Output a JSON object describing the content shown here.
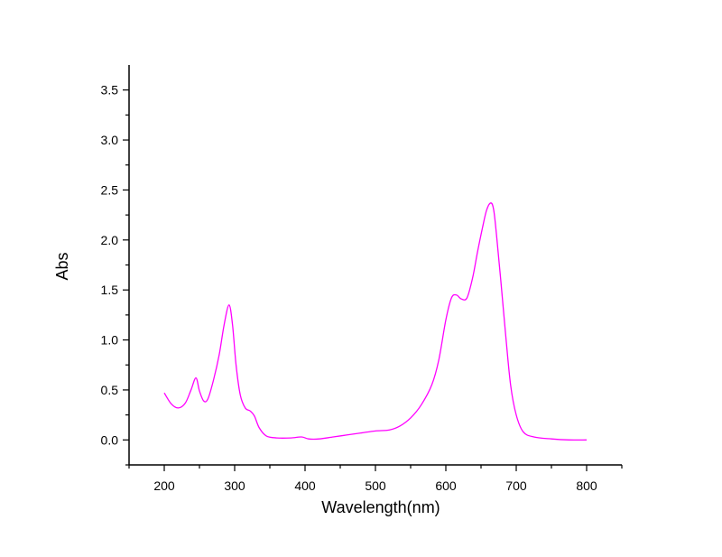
{
  "chart_data": {
    "type": "line",
    "xlabel": "Wavelength(nm)",
    "ylabel": "Abs",
    "xlim": [
      150,
      850
    ],
    "ylim": [
      -0.25,
      3.75
    ],
    "x_ticks": [
      200,
      300,
      400,
      500,
      600,
      700,
      800
    ],
    "x_tick_labels": [
      "200",
      "300",
      "400",
      "500",
      "600",
      "700",
      "800"
    ],
    "y_ticks": [
      0.0,
      0.5,
      1.0,
      1.5,
      2.0,
      2.5,
      3.0,
      3.5
    ],
    "y_tick_labels": [
      "0.0",
      "0.5",
      "1.0",
      "1.5",
      "2.0",
      "2.5",
      "3.0",
      "3.5"
    ],
    "grid": false,
    "legend": "none",
    "series": [
      {
        "color": "#ff00ff",
        "x": [
          200,
          210,
          220,
          230,
          238,
          245,
          250,
          256,
          262,
          270,
          278,
          285,
          292,
          297,
          302,
          308,
          315,
          322,
          328,
          335,
          345,
          360,
          380,
          395,
          405,
          420,
          440,
          460,
          480,
          500,
          520,
          535,
          550,
          565,
          580,
          590,
          600,
          608,
          615,
          622,
          630,
          638,
          645,
          652,
          658,
          664,
          668,
          672,
          678,
          685,
          692,
          700,
          710,
          725,
          750,
          775,
          800
        ],
        "y": [
          0.47,
          0.36,
          0.32,
          0.37,
          0.5,
          0.62,
          0.49,
          0.39,
          0.41,
          0.6,
          0.85,
          1.15,
          1.35,
          1.15,
          0.75,
          0.45,
          0.32,
          0.29,
          0.24,
          0.12,
          0.04,
          0.02,
          0.02,
          0.03,
          0.01,
          0.01,
          0.03,
          0.05,
          0.07,
          0.09,
          0.1,
          0.14,
          0.22,
          0.35,
          0.55,
          0.8,
          1.2,
          1.42,
          1.45,
          1.41,
          1.42,
          1.62,
          1.88,
          2.12,
          2.3,
          2.37,
          2.3,
          2.05,
          1.6,
          1.05,
          0.55,
          0.25,
          0.08,
          0.03,
          0.01,
          0.0,
          0.0
        ]
      }
    ]
  }
}
